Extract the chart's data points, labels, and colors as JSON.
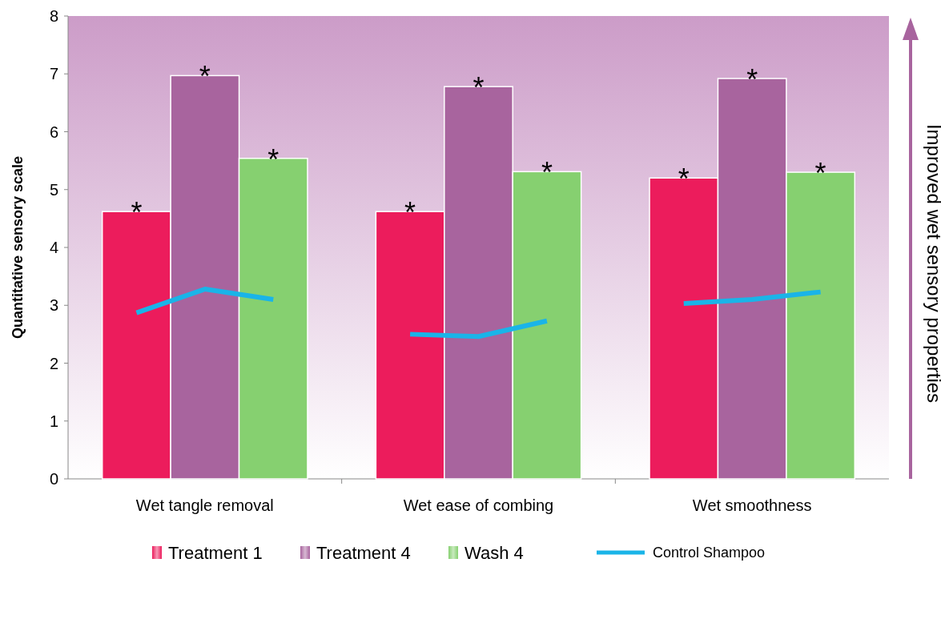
{
  "chart_data": {
    "type": "bar",
    "stacked": true,
    "ylabel": "Quantitative sensory scale",
    "categories": [
      null,
      "Wet tangle removal",
      null,
      null,
      null,
      "Wet ease of combing",
      null,
      null,
      null,
      "Wet smoothness",
      null
    ],
    "series": [
      {
        "name": "Treatment 1",
        "color": "#ec1c5c",
        "values": [
          4.62,
          null,
          null,
          null,
          4.62,
          null,
          null,
          null,
          5.2,
          null,
          null
        ],
        "value_labels": [
          "*",
          null,
          null,
          null,
          "*",
          null,
          null,
          null,
          "*",
          null,
          null
        ]
      },
      {
        "name": "Treatment 4",
        "color": "#a8649e",
        "values": [
          null,
          6.97,
          null,
          null,
          null,
          6.78,
          null,
          null,
          null,
          6.92,
          null
        ],
        "value_labels": [
          null,
          "*",
          null,
          null,
          null,
          "*",
          null,
          null,
          null,
          "*",
          null
        ]
      },
      {
        "name": "Wash 4",
        "color": "#86d070",
        "values": [
          null,
          null,
          5.54,
          null,
          null,
          null,
          5.31,
          null,
          null,
          null,
          5.3
        ],
        "value_labels": [
          null,
          null,
          "*",
          null,
          null,
          null,
          "*",
          null,
          null,
          null,
          "*"
        ]
      },
      {
        "name": "Control Shampoo",
        "type": "line",
        "color": "#1ab4e8",
        "values": [
          2.87,
          3.28,
          3.1,
          null,
          2.5,
          2.46,
          2.73,
          null,
          3.03,
          3.1,
          3.23
        ]
      }
    ],
    "ylim": [
      0,
      8
    ],
    "yticks": [
      0,
      1,
      2,
      3,
      4,
      5,
      6,
      7,
      8
    ],
    "legend": "bottom",
    "grid": false,
    "annotations": [
      "Improved wet sensory properties"
    ]
  }
}
